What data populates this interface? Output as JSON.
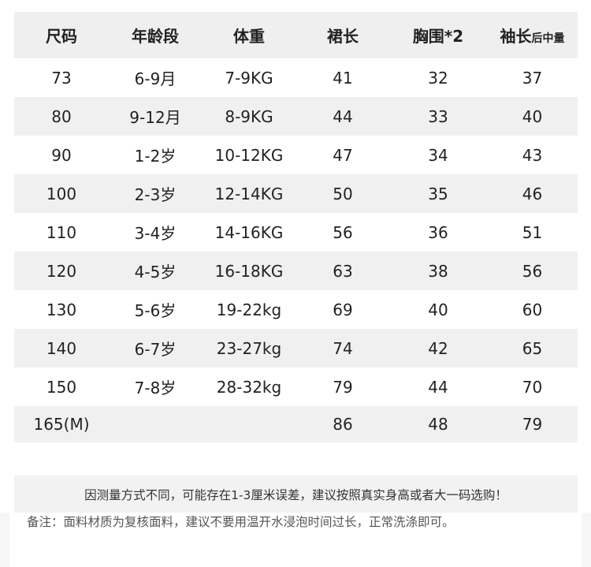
{
  "table": {
    "headers": [
      "尺码",
      "年龄段",
      "体重",
      "裙长",
      "胸围*2",
      "袖长"
    ],
    "header_suffix": "后中量",
    "rows": [
      [
        "73",
        "6-9月",
        "7-9KG",
        "41",
        "32",
        "37"
      ],
      [
        "80",
        "9-12月",
        "8-9KG",
        "44",
        "33",
        "40"
      ],
      [
        "90",
        "1-2岁",
        "10-12KG",
        "47",
        "34",
        "43"
      ],
      [
        "100",
        "2-3岁",
        "12-14KG",
        "50",
        "35",
        "46"
      ],
      [
        "110",
        "3-4岁",
        "14-16KG",
        "56",
        "36",
        "51"
      ],
      [
        "120",
        "4-5岁",
        "16-18KG",
        "63",
        "38",
        "56"
      ],
      [
        "130",
        "5-6岁",
        "19-22kg",
        "69",
        "40",
        "60"
      ],
      [
        "140",
        "6-7岁",
        "23-27kg",
        "74",
        "42",
        "65"
      ],
      [
        "150",
        "7-8岁",
        "28-32kg",
        "79",
        "44",
        "70"
      ],
      [
        "165(M)",
        "",
        "",
        "86",
        "48",
        "79"
      ]
    ]
  },
  "tip": "因测量方式不同，可能存在1-3厘米误差，建议按照真实身高或者大一码选购！",
  "note": "备注：面料材质为复核面料，建议不要用温开水浸泡时间过长，正常洗涤即可。"
}
